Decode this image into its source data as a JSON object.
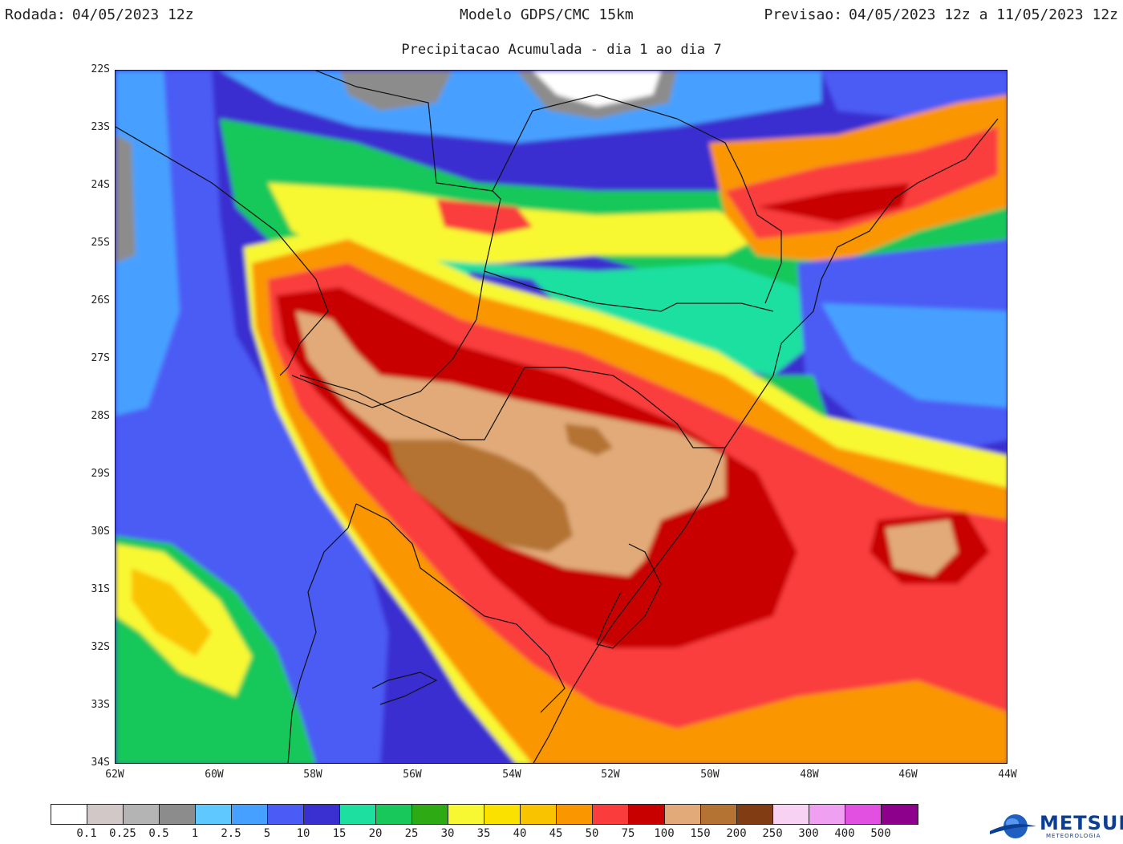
{
  "header": {
    "run_label": "Rodada:",
    "run_value": "04/05/2023 12z",
    "model": "Modelo GDPS/CMC 15km",
    "forecast_label": "Previsao:",
    "forecast_value": "04/05/2023 12z a 11/05/2023 12z",
    "subtitle": "Precipitacao Acumulada - dia 1 ao dia 7"
  },
  "axes": {
    "lat_labels": [
      "22S",
      "23S",
      "24S",
      "25S",
      "26S",
      "27S",
      "28S",
      "29S",
      "30S",
      "31S",
      "32S",
      "33S",
      "34S"
    ],
    "lon_labels": [
      "62W",
      "60W",
      "58W",
      "56W",
      "54W",
      "52W",
      "50W",
      "48W",
      "46W",
      "44W"
    ],
    "lat_range": [
      -34,
      -22
    ],
    "lon_range": [
      -62,
      -44
    ]
  },
  "legend": {
    "labels": [
      "0.1",
      "0.25",
      "0.5",
      "1",
      "2.5",
      "5",
      "10",
      "15",
      "20",
      "25",
      "30",
      "35",
      "40",
      "45",
      "50",
      "75",
      "100",
      "150",
      "200",
      "250",
      "300",
      "400",
      "500"
    ],
    "colors": [
      "#ffffff",
      "#d2c8c8",
      "#b4b4b4",
      "#8c8c8c",
      "#5ec8ff",
      "#46a0ff",
      "#4b5bf5",
      "#3a2fd0",
      "#1de0a0",
      "#18c85a",
      "#2daa14",
      "#f8f832",
      "#fae100",
      "#fac300",
      "#fa9600",
      "#fa3c3c",
      "#c80000",
      "#e1aa78",
      "#b47332",
      "#823c14",
      "#f7d2f2",
      "#f0a0f0",
      "#e150e1",
      "#8c008c"
    ]
  },
  "logo": {
    "text": "METSUL",
    "sub": "METEOROLOGIA"
  }
}
